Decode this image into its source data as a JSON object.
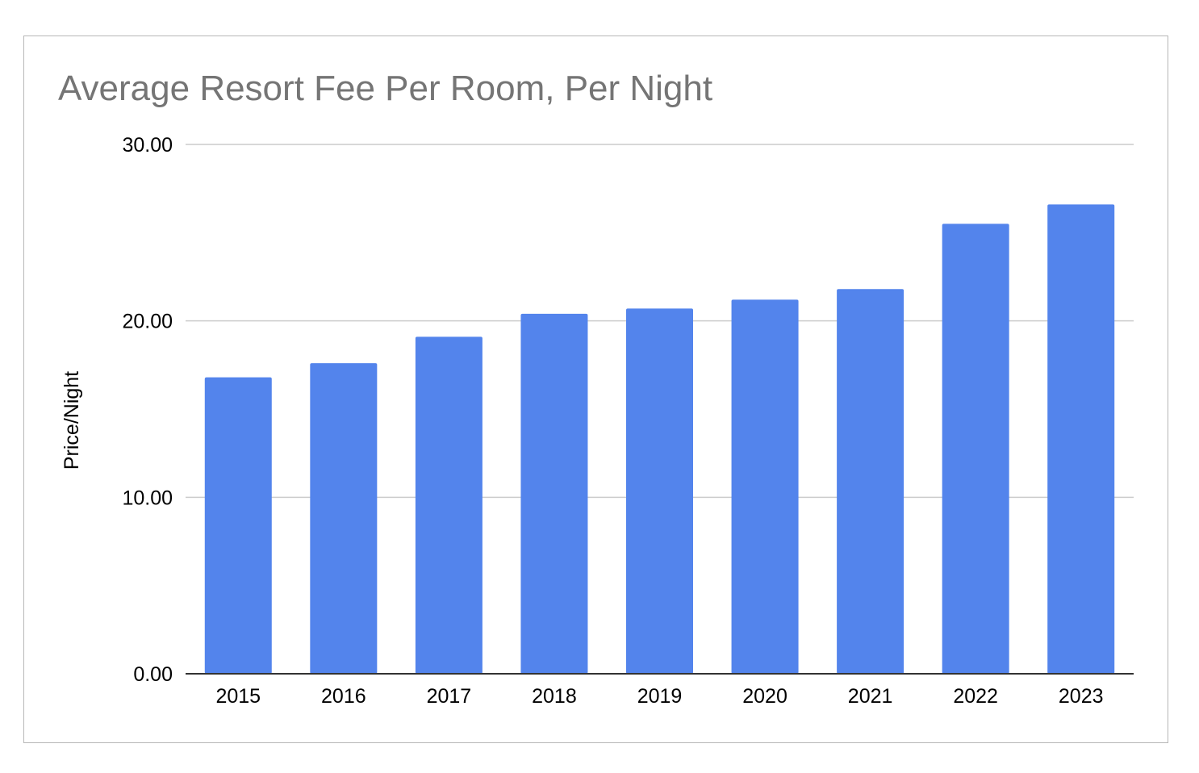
{
  "chart_data": {
    "type": "bar",
    "title": "Average Resort Fee Per Room, Per Night",
    "xlabel": "",
    "ylabel": "Price/Night",
    "categories": [
      "2015",
      "2016",
      "2017",
      "2018",
      "2019",
      "2020",
      "2021",
      "2022",
      "2023"
    ],
    "values": [
      16.8,
      17.6,
      19.1,
      20.4,
      20.7,
      21.2,
      21.8,
      25.5,
      26.6
    ],
    "ylim": [
      0,
      30
    ],
    "yticks": [
      "0.00",
      "10.00",
      "20.00",
      "30.00"
    ],
    "grid": true,
    "legend": "none",
    "colors": {
      "bar": "#5384ec",
      "grid": "#cccccc",
      "axis": "#333333",
      "title": "#757575"
    }
  }
}
